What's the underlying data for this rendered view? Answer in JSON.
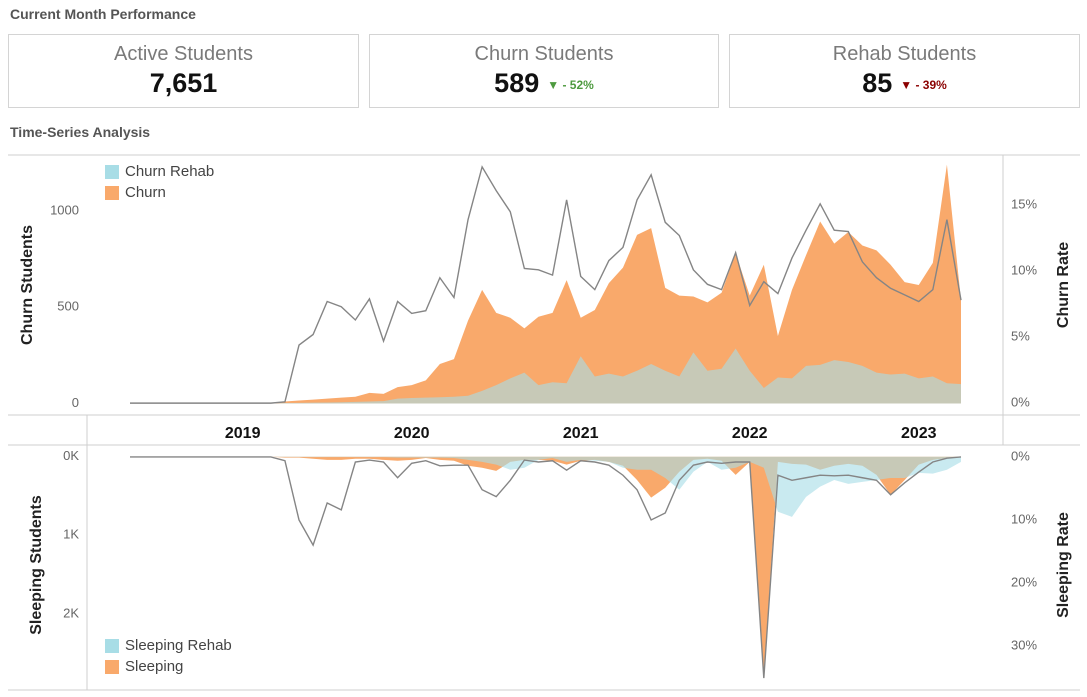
{
  "header": {
    "title": "Current Month Performance"
  },
  "kpis": [
    {
      "title": "Active Students",
      "value": "7,651"
    },
    {
      "title": "Churn Students",
      "value": "589",
      "change": "- 52%"
    },
    {
      "title": "Rehab Students",
      "value": "85",
      "change": "- 39%"
    }
  ],
  "section_title": "Time-Series Analysis",
  "chart_data": [
    {
      "type": "area",
      "y_label": "Churn Students",
      "y2_label": "Churn Rate",
      "categories": [
        null,
        null,
        null,
        null,
        null,
        null,
        null,
        null,
        "2019",
        null,
        null,
        null,
        null,
        null,
        null,
        null,
        null,
        null,
        null,
        null,
        "2020",
        null,
        null,
        null,
        null,
        null,
        null,
        null,
        null,
        null,
        null,
        null,
        "2021",
        null,
        null,
        null,
        null,
        null,
        null,
        null,
        null,
        null,
        null,
        null,
        "2022",
        null,
        null,
        null,
        null,
        null,
        null,
        null,
        null,
        null,
        null,
        null,
        "2023",
        null,
        null,
        null
      ],
      "ylim": [
        -60,
        1290
      ],
      "yticks": [
        0,
        500,
        1000
      ],
      "y2lim": [
        -0.9,
        18.8
      ],
      "y2ticks": [
        {
          "value": 0,
          "label": "0%"
        },
        {
          "value": 5,
          "label": "5%"
        },
        {
          "value": 10,
          "label": "10%"
        },
        {
          "value": 15,
          "label": "15%"
        }
      ],
      "legend": "top-left",
      "reversed": false,
      "series": [
        {
          "name": "Churn",
          "type": "area",
          "color": "#f9a96b",
          "values": [
            0,
            0,
            0,
            0,
            0,
            0,
            0,
            0,
            0,
            0,
            0,
            10,
            15,
            20,
            25,
            30,
            35,
            55,
            50,
            85,
            95,
            120,
            205,
            230,
            430,
            590,
            470,
            445,
            390,
            450,
            470,
            640,
            445,
            485,
            625,
            705,
            875,
            910,
            600,
            560,
            555,
            525,
            575,
            780,
            560,
            720,
            350,
            590,
            770,
            945,
            830,
            890,
            820,
            795,
            720,
            630,
            615,
            730,
            1240,
            535
          ]
        },
        {
          "name": "Churn Rehab",
          "type": "area",
          "color": "#a8dde6",
          "values": [
            0,
            0,
            0,
            0,
            0,
            0,
            0,
            0,
            0,
            0,
            0,
            2,
            3,
            4,
            5,
            6,
            8,
            10,
            12,
            25,
            28,
            30,
            32,
            35,
            40,
            65,
            95,
            130,
            160,
            95,
            110,
            105,
            245,
            140,
            155,
            140,
            170,
            205,
            170,
            140,
            265,
            170,
            180,
            285,
            170,
            80,
            135,
            130,
            195,
            200,
            225,
            215,
            195,
            160,
            150,
            155,
            130,
            140,
            105,
            100
          ]
        },
        {
          "type": "line",
          "axis": "y2",
          "color": "#858585",
          "values": [
            0,
            0,
            0,
            0,
            0,
            0,
            0,
            0,
            0,
            0,
            0,
            0.1,
            4.4,
            5.2,
            7.7,
            7.3,
            6.3,
            7.9,
            4.7,
            7.7,
            6.8,
            7.0,
            9.5,
            8.0,
            13.9,
            17.9,
            16.1,
            14.5,
            10.2,
            10.1,
            9.7,
            15.4,
            9.6,
            8.6,
            10.8,
            11.8,
            15.4,
            17.3,
            13.7,
            12.7,
            10.1,
            9.0,
            8.6,
            11.4,
            7.4,
            9.2,
            8.3,
            11.0,
            13.1,
            15.1,
            13.1,
            13.0,
            10.7,
            9.5,
            8.7,
            8.2,
            7.7,
            8.6,
            13.9,
            7.8
          ]
        }
      ]
    },
    {
      "type": "area",
      "y_label": "Sleeping Students",
      "y2_label": "Sleeping Rate",
      "ylim": [
        -150,
        2970
      ],
      "yticks": [
        {
          "value": 0,
          "label": "0K"
        },
        {
          "value": 1000,
          "label": "1K"
        },
        {
          "value": 2000,
          "label": "2K"
        }
      ],
      "y2lim": [
        -1.9,
        37
      ],
      "y2ticks": [
        {
          "value": 0,
          "label": "0%"
        },
        {
          "value": 10,
          "label": "10%"
        },
        {
          "value": 20,
          "label": "20%"
        },
        {
          "value": 30,
          "label": "30%"
        }
      ],
      "legend": "bottom-left",
      "reversed": true,
      "series": [
        {
          "name": "Sleeping",
          "type": "area",
          "color": "#f9a96b",
          "values": [
            0,
            0,
            0,
            0,
            0,
            0,
            0,
            0,
            0,
            0,
            0,
            10,
            10,
            25,
            40,
            40,
            25,
            25,
            40,
            50,
            40,
            15,
            40,
            50,
            115,
            140,
            180,
            65,
            40,
            40,
            50,
            100,
            50,
            40,
            65,
            115,
            295,
            520,
            395,
            190,
            40,
            25,
            50,
            230,
            65,
            2815,
            65,
            90,
            100,
            165,
            115,
            90,
            115,
            230,
            485,
            295,
            100,
            40,
            15,
            5
          ]
        },
        {
          "name": "Sleeping Rehab",
          "type": "area",
          "color": "#a8dde6",
          "values": [
            0,
            0,
            0,
            0,
            0,
            0,
            0,
            0,
            0,
            0,
            0,
            5,
            5,
            5,
            5,
            5,
            5,
            5,
            5,
            10,
            10,
            10,
            10,
            15,
            40,
            65,
            100,
            165,
            140,
            40,
            15,
            65,
            40,
            50,
            65,
            140,
            165,
            165,
            270,
            420,
            190,
            65,
            165,
            140,
            65,
            140,
            700,
            765,
            510,
            380,
            295,
            345,
            320,
            295,
            270,
            270,
            205,
            215,
            165,
            65
          ]
        },
        {
          "type": "line",
          "axis": "y2",
          "color": "#858585",
          "values": [
            0,
            0,
            0,
            0,
            0,
            0,
            0,
            0,
            0,
            0,
            0,
            0.6,
            10.0,
            14.0,
            7.3,
            8.4,
            0.8,
            0.5,
            0.8,
            3.3,
            1.0,
            0.6,
            1.4,
            1.3,
            1.3,
            5.2,
            6.3,
            3.7,
            0.5,
            0.8,
            0.6,
            2.1,
            0.6,
            0.8,
            1.3,
            2.9,
            5.2,
            10.0,
            8.9,
            3.7,
            1.3,
            0.8,
            1.0,
            0.8,
            0.8,
            35.1,
            2.9,
            3.7,
            3.3,
            2.9,
            3.0,
            2.9,
            3.3,
            3.7,
            6.0,
            4.1,
            2.4,
            0.8,
            0.2,
            0
          ]
        }
      ]
    }
  ]
}
